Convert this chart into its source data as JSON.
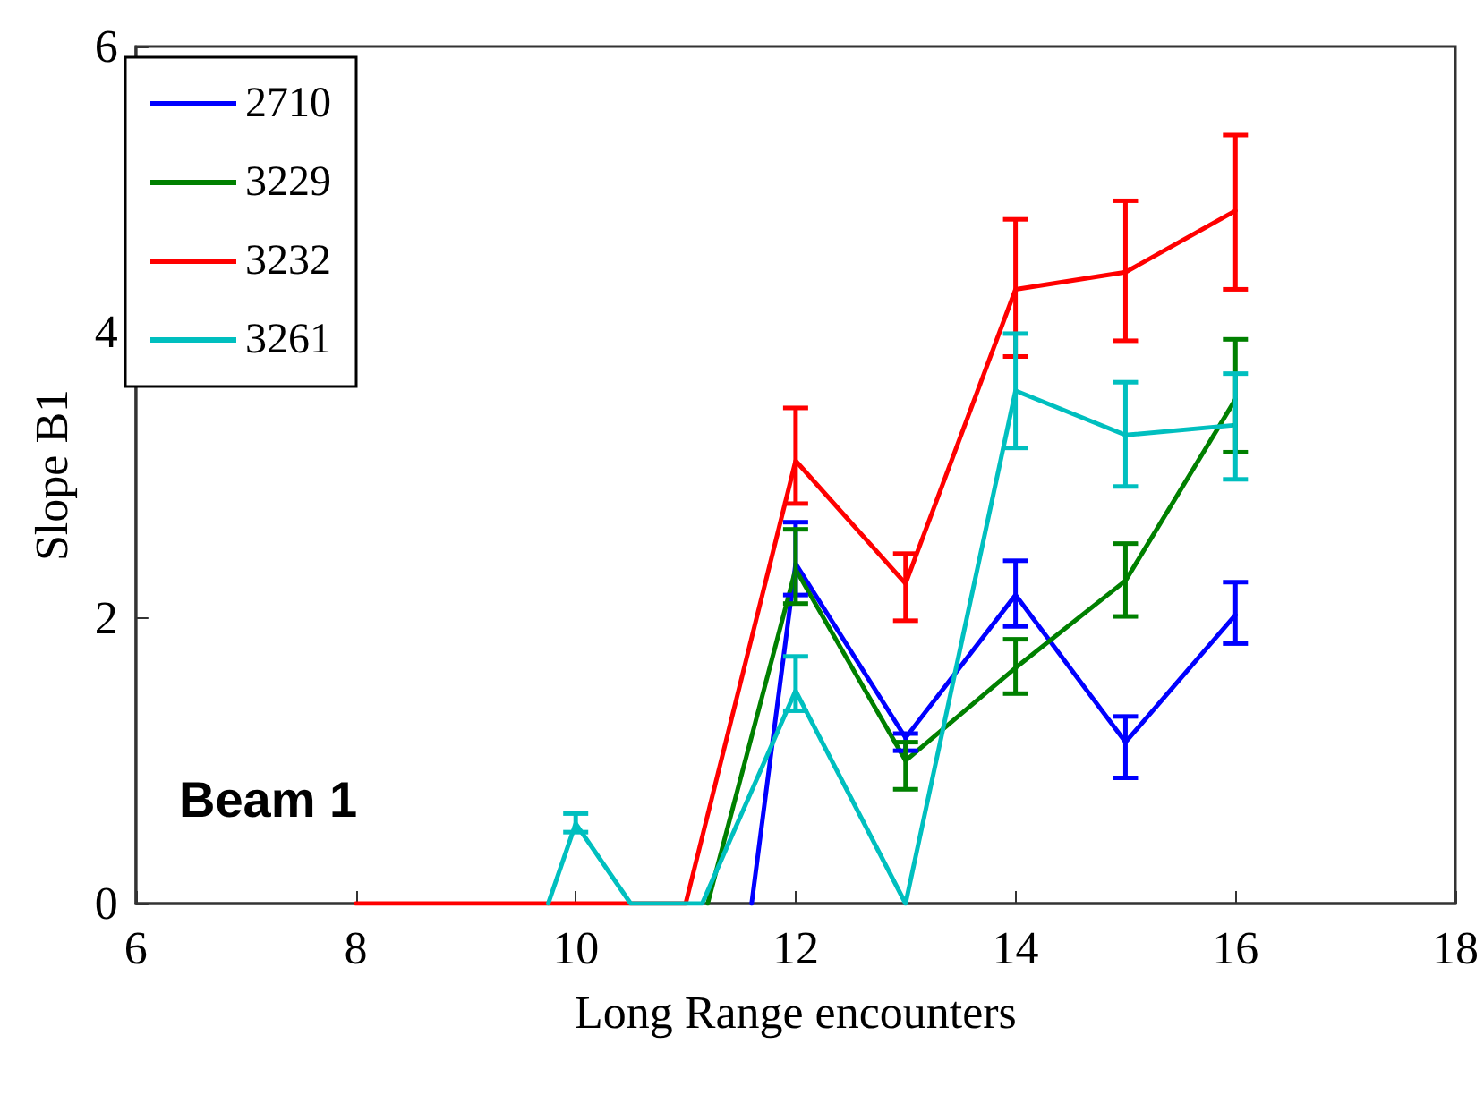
{
  "chart_data": {
    "type": "line",
    "xlabel": "Long Range encounters",
    "ylabel": "Slope B1",
    "annotations": [
      "Beam 1"
    ],
    "xlim": [
      6,
      18
    ],
    "xticks": [
      6,
      8,
      10,
      12,
      14,
      16,
      18
    ],
    "ylim": [
      0,
      6
    ],
    "yticks": [
      0,
      2,
      4,
      6
    ],
    "grid": false,
    "legend": "top left",
    "marker": "none",
    "line_style": "solid",
    "series": [
      {
        "name": "2710",
        "color": "#0000ff",
        "x": [
          11.6,
          12,
          13,
          14,
          15,
          16
        ],
        "values": [
          0,
          2.38,
          1.16,
          2.16,
          1.13,
          2.02
        ],
        "errors": [
          null,
          [
            2.16,
            2.67
          ],
          [
            1.07,
            1.19
          ],
          [
            1.94,
            2.4
          ],
          [
            0.88,
            1.31
          ],
          [
            1.82,
            2.25
          ]
        ]
      },
      {
        "name": "3229",
        "color": "#008000",
        "x": [
          11.2,
          12,
          13,
          14,
          15,
          16
        ],
        "values": [
          0,
          2.34,
          1.0,
          1.65,
          2.26,
          3.53
        ],
        "errors": [
          null,
          [
            2.1,
            2.62
          ],
          [
            0.8,
            1.13
          ],
          [
            1.47,
            1.85
          ],
          [
            2.01,
            2.52
          ],
          [
            3.16,
            3.95
          ]
        ]
      },
      {
        "name": "3232",
        "color": "#ff0000",
        "x": [
          8,
          9,
          10,
          11,
          12,
          13,
          14,
          15,
          16
        ],
        "values": [
          0,
          0,
          0,
          0,
          3.1,
          2.24,
          4.3,
          4.42,
          4.85
        ],
        "errors": [
          null,
          null,
          null,
          null,
          [
            2.8,
            3.47
          ],
          [
            1.98,
            2.45
          ],
          [
            3.83,
            4.79
          ],
          [
            3.94,
            4.92
          ],
          [
            4.3,
            5.38
          ]
        ]
      },
      {
        "name": "3261",
        "color": "#00bfbf",
        "x": [
          9.75,
          10,
          10.5,
          11.15,
          12,
          13,
          14,
          15,
          16
        ],
        "values": [
          0,
          0.56,
          0,
          0,
          1.49,
          0,
          3.59,
          3.28,
          3.35
        ],
        "errors": [
          null,
          [
            0.5,
            0.63
          ],
          null,
          null,
          [
            1.35,
            1.73
          ],
          null,
          [
            3.19,
            3.99
          ],
          [
            2.92,
            3.65
          ],
          [
            2.97,
            3.71
          ]
        ]
      }
    ]
  }
}
